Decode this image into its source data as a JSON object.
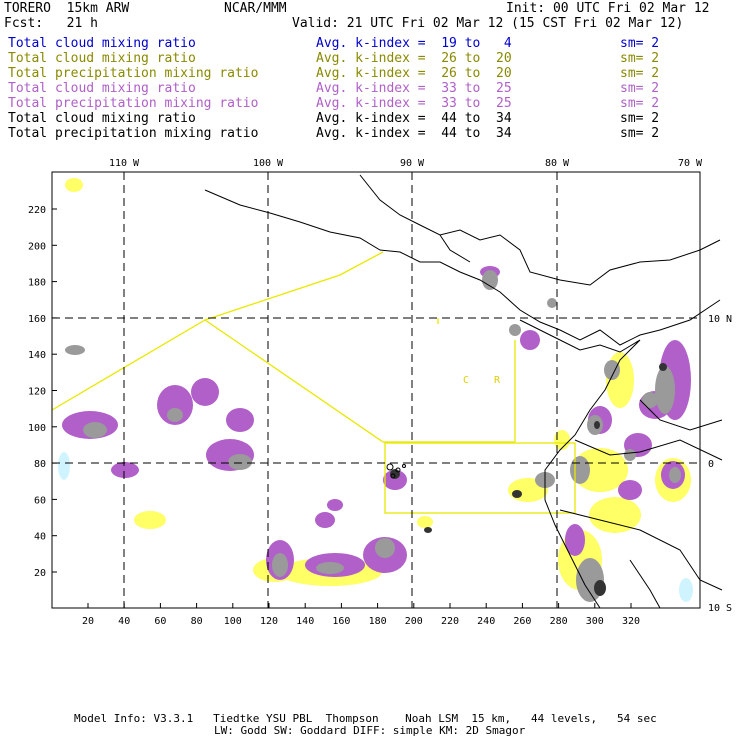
{
  "header": {
    "model": "TORERO  15km ARW",
    "org": "NCAR/MMM",
    "init": "Init: 00 UTC Fri 02 Mar 12",
    "fcst": "Fcst:   21 h",
    "valid": "Valid: 21 UTC Fri 02 Mar 12 (15 CST Fri 02 Mar 12)"
  },
  "legend": [
    {
      "field": "Total cloud mixing ratio",
      "kindex": "Avg. k-index =  19 to   4",
      "sm": "sm= 2",
      "color": "#0000cc"
    },
    {
      "field": "Total cloud mixing ratio",
      "kindex": "Avg. k-index =  26 to  20",
      "sm": "sm= 2",
      "color": "#8a8a00"
    },
    {
      "field": "Total precipitation mixing ratio",
      "kindex": "Avg. k-index =  26 to  20",
      "sm": "sm= 2",
      "color": "#8a8a00"
    },
    {
      "field": "Total cloud mixing ratio",
      "kindex": "Avg. k-index =  33 to  25",
      "sm": "sm= 2",
      "color": "#b060c8"
    },
    {
      "field": "Total precipitation mixing ratio",
      "kindex": "Avg. k-index =  33 to  25",
      "sm": "sm= 2",
      "color": "#b060c8"
    },
    {
      "field": "Total cloud mixing ratio",
      "kindex": "Avg. k-index =  44 to  34",
      "sm": "sm= 2",
      "color": "#000000"
    },
    {
      "field": "Total precipitation mixing ratio",
      "kindex": "Avg. k-index =  44 to  34",
      "sm": "sm= 2",
      "color": "#000000"
    }
  ],
  "map": {
    "lon_labels": [
      "110 W",
      "100 W",
      "90 W",
      "80 W",
      "70 W"
    ],
    "lat_labels": [
      "10 N",
      "0",
      "10 S"
    ],
    "x_ticks": [
      "20",
      "40",
      "60",
      "80",
      "100",
      "120",
      "140",
      "160",
      "180",
      "200",
      "220",
      "240",
      "260",
      "280",
      "300",
      "320"
    ],
    "y_ticks": [
      "20",
      "40",
      "60",
      "80",
      "100",
      "120",
      "140",
      "160",
      "180",
      "200",
      "220"
    ],
    "region_label_c": "C",
    "region_label_r": "R",
    "colors": {
      "cloud_yellow": "#ffff66",
      "purple": "#b060c8",
      "grey": "#9a9a9a",
      "dark": "#333333",
      "boundary": "#e8e800",
      "cyan": "#d0f4ff"
    }
  },
  "footer": {
    "line1": "Model Info: V3.3.1   Tiedtke YSU PBL  Thompson    Noah LSM  15 km,   44 levels,   54 sec",
    "line2": "LW: Godd SW: Goddard DIFF: simple KM: 2D Smagor"
  }
}
